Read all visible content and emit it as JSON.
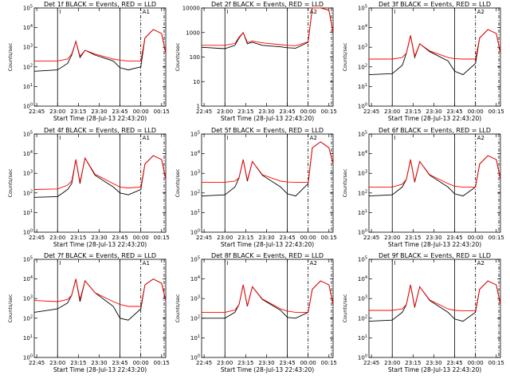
{
  "chart_data": {
    "type": "line",
    "x_tick_labels": [
      "22:45",
      "23:00",
      "23:15",
      "23:30",
      "23:45",
      "00:00",
      "00:15"
    ],
    "x_axis_label": "Start Time (28-Jul-13 22:43:20)",
    "y_axis_label": "Counts/sec",
    "y_scale": "log",
    "grid": false,
    "colors": {
      "events": "#000000",
      "lld": "#ff0000"
    },
    "panels": [
      {
        "title": "Det 1f BLACK = Events, RED = LLD",
        "ylim": [
          1,
          100000
        ],
        "y_ticks": [
          "10^0",
          "10^1",
          "10^2",
          "10^3",
          "10^4",
          "10^5"
        ],
        "marker_label": "A1",
        "series": [
          {
            "x": [
              22.72,
              23.0,
              23.12,
              23.17,
              23.22,
              23.27,
              23.33,
              23.45,
              23.67,
              23.75,
              23.85,
              24.0,
              24.05,
              24.15,
              24.25,
              24.3
            ],
            "y": [
              60,
              70,
              150,
              400,
              2000,
              300,
              700,
              400,
              200,
              90,
              70,
              100,
              3000,
              8000,
              5000,
              500
            ]
          },
          {
            "x": [
              22.72,
              23.0,
              23.12,
              23.17,
              23.22,
              23.27,
              23.33,
              23.45,
              23.67,
              23.75,
              23.85,
              24.0,
              24.05,
              24.15,
              24.25,
              24.3
            ],
            "y": [
              200,
              200,
              250,
              450,
              2000,
              350,
              700,
              450,
              250,
              220,
              200,
              200,
              3000,
              8000,
              5000,
              500
            ]
          }
        ]
      },
      {
        "title": "Det 2f BLACK = Events, RED = LLD",
        "ylim": [
          1,
          10000
        ],
        "y_ticks": [
          "1",
          "10",
          "100",
          "1000",
          "10000"
        ],
        "marker_label": "A2",
        "series": [
          {
            "x": [
              22.72,
              23.0,
              23.12,
              23.17,
              23.22,
              23.27,
              23.33,
              23.45,
              23.67,
              23.75,
              23.85,
              24.0,
              24.05,
              24.15,
              24.25,
              24.3
            ],
            "y": [
              250,
              220,
              300,
              600,
              1000,
              350,
              400,
              300,
              260,
              240,
              230,
              400,
              12000,
              14000,
              8000,
              1000
            ]
          },
          {
            "x": [
              22.72,
              23.0,
              23.12,
              23.17,
              23.22,
              23.27,
              23.33,
              23.45,
              23.67,
              23.75,
              23.85,
              24.0,
              24.05,
              24.15,
              24.25,
              24.3
            ],
            "y": [
              300,
              300,
              360,
              650,
              1000,
              400,
              450,
              380,
              320,
              300,
              290,
              420,
              12000,
              14000,
              8000,
              1000
            ]
          }
        ]
      },
      {
        "title": "Det 3f BLACK = Events, RED = LLD",
        "ylim": [
          1,
          100000
        ],
        "y_ticks": [
          "10^0",
          "10^1",
          "10^2",
          "10^3",
          "10^4",
          "10^5"
        ],
        "marker_label": "A2",
        "series": [
          {
            "x": [
              22.72,
              23.0,
              23.12,
              23.17,
              23.22,
              23.27,
              23.33,
              23.45,
              23.67,
              23.75,
              23.85,
              24.0,
              24.05,
              24.15,
              24.25,
              24.3
            ],
            "y": [
              40,
              45,
              120,
              500,
              4000,
              300,
              1500,
              600,
              200,
              60,
              40,
              150,
              3000,
              8000,
              5000,
              500
            ]
          },
          {
            "x": [
              22.72,
              23.0,
              23.12,
              23.17,
              23.22,
              23.27,
              23.33,
              23.45,
              23.67,
              23.75,
              23.85,
              24.0,
              24.05,
              24.15,
              24.25,
              24.3
            ],
            "y": [
              250,
              250,
              300,
              500,
              4000,
              350,
              1500,
              650,
              300,
              260,
              250,
              250,
              3000,
              8000,
              5000,
              500
            ]
          }
        ]
      },
      {
        "title": "Det 4f BLACK = Events, RED = LLD",
        "ylim": [
          1,
          100000
        ],
        "y_ticks": [
          "10^0",
          "10^1",
          "10^2",
          "10^3",
          "10^4",
          "10^5"
        ],
        "marker_label": "A1",
        "series": [
          {
            "x": [
              22.72,
              23.0,
              23.12,
              23.17,
              23.22,
              23.27,
              23.33,
              23.45,
              23.67,
              23.75,
              23.85,
              24.0,
              24.05,
              24.15,
              24.25,
              24.3
            ],
            "y": [
              60,
              65,
              150,
              300,
              5000,
              300,
              6000,
              800,
              200,
              100,
              80,
              150,
              3000,
              8000,
              5000,
              500
            ]
          },
          {
            "x": [
              22.72,
              23.0,
              23.12,
              23.17,
              23.22,
              23.27,
              23.33,
              23.45,
              23.67,
              23.75,
              23.85,
              24.0,
              24.05,
              24.15,
              24.25,
              24.3
            ],
            "y": [
              150,
              160,
              250,
              400,
              5000,
              350,
              6000,
              900,
              300,
              200,
              180,
              200,
              3000,
              8000,
              5000,
              500
            ]
          }
        ]
      },
      {
        "title": "Det 5f BLACK = Events, RED = LLD",
        "ylim": [
          1,
          100000
        ],
        "y_ticks": [
          "10^0",
          "10^1",
          "10^2",
          "10^3",
          "10^4",
          "10^5"
        ],
        "marker_label": "A2",
        "series": [
          {
            "x": [
              22.72,
              23.0,
              23.12,
              23.17,
              23.22,
              23.27,
              23.33,
              23.45,
              23.67,
              23.75,
              23.85,
              24.0,
              24.05,
              24.15,
              24.25,
              24.3
            ],
            "y": [
              70,
              80,
              200,
              600,
              5000,
              400,
              4000,
              800,
              200,
              90,
              70,
              300,
              20000,
              40000,
              20000,
              3000
            ]
          },
          {
            "x": [
              22.72,
              23.0,
              23.12,
              23.17,
              23.22,
              23.27,
              23.33,
              23.45,
              23.67,
              23.75,
              23.85,
              24.0,
              24.05,
              24.15,
              24.25,
              24.3
            ],
            "y": [
              350,
              350,
              400,
              600,
              5000,
              450,
              4000,
              850,
              400,
              360,
              350,
              350,
              20000,
              40000,
              20000,
              3000
            ]
          }
        ]
      },
      {
        "title": "Det 6f BLACK = Events, RED = LLD",
        "ylim": [
          1,
          100000
        ],
        "y_ticks": [
          "10^0",
          "10^1",
          "10^2",
          "10^3",
          "10^4",
          "10^5"
        ],
        "marker_label": "A2",
        "series": [
          {
            "x": [
              22.72,
              23.0,
              23.12,
              23.17,
              23.22,
              23.27,
              23.33,
              23.45,
              23.67,
              23.75,
              23.85,
              24.0,
              24.05,
              24.15,
              24.25,
              24.3
            ],
            "y": [
              70,
              80,
              200,
              500,
              5000,
              350,
              4000,
              800,
              200,
              90,
              70,
              200,
              3000,
              8000,
              5000,
              500
            ]
          },
          {
            "x": [
              22.72,
              23.0,
              23.12,
              23.17,
              23.22,
              23.27,
              23.33,
              23.45,
              23.67,
              23.75,
              23.85,
              24.0,
              24.05,
              24.15,
              24.25,
              24.3
            ],
            "y": [
              200,
              200,
              280,
              500,
              5000,
              380,
              4000,
              850,
              300,
              220,
              200,
              200,
              3000,
              8000,
              5000,
              500
            ]
          }
        ]
      },
      {
        "title": "Det 7f BLACK = Events, RED = LLD",
        "ylim": [
          1,
          100000
        ],
        "y_ticks": [
          "10^0",
          "10^1",
          "10^2",
          "10^3",
          "10^4",
          "10^5"
        ],
        "marker_label": "A1",
        "series": [
          {
            "x": [
              22.72,
              23.0,
              23.12,
              23.17,
              23.22,
              23.27,
              23.33,
              23.45,
              23.67,
              23.75,
              23.85,
              24.0,
              24.05,
              24.15,
              24.25,
              24.3
            ],
            "y": [
              200,
              300,
              600,
              1500,
              10000,
              700,
              8000,
              2000,
              400,
              100,
              80,
              300,
              5000,
              10000,
              6000,
              800
            ]
          },
          {
            "x": [
              22.72,
              23.0,
              23.12,
              23.17,
              23.22,
              23.27,
              23.33,
              23.45,
              23.67,
              23.75,
              23.85,
              24.0,
              24.05,
              24.15,
              24.25,
              24.3
            ],
            "y": [
              800,
              700,
              900,
              1500,
              10000,
              900,
              8000,
              2000,
              700,
              500,
              400,
              400,
              5000,
              10000,
              6000,
              800
            ]
          }
        ]
      },
      {
        "title": "Det 8f BLACK = Events, RED = LLD",
        "ylim": [
          1,
          100000
        ],
        "y_ticks": [
          "10^0",
          "10^1",
          "10^2",
          "10^3",
          "10^4",
          "10^5"
        ],
        "marker_label": "A2",
        "series": [
          {
            "x": [
              22.72,
              23.0,
              23.12,
              23.17,
              23.22,
              23.27,
              23.33,
              23.45,
              23.67,
              23.75,
              23.85,
              24.0,
              24.05,
              24.15,
              24.25,
              24.3
            ],
            "y": [
              100,
              100,
              200,
              500,
              5000,
              400,
              4000,
              900,
              250,
              110,
              100,
              200,
              3000,
              8000,
              5000,
              500
            ]
          },
          {
            "x": [
              22.72,
              23.0,
              23.12,
              23.17,
              23.22,
              23.27,
              23.33,
              23.45,
              23.67,
              23.75,
              23.85,
              24.0,
              24.05,
              24.15,
              24.25,
              24.3
            ],
            "y": [
              200,
              200,
              260,
              500,
              5000,
              420,
              4000,
              950,
              300,
              230,
              200,
              200,
              3000,
              8000,
              5000,
              500
            ]
          }
        ]
      },
      {
        "title": "Det 9f BLACK = Events, RED = LLD",
        "ylim": [
          1,
          100000
        ],
        "y_ticks": [
          "10^0",
          "10^1",
          "10^2",
          "10^3",
          "10^4",
          "10^5"
        ],
        "marker_label": "A2",
        "series": [
          {
            "x": [
              22.72,
              23.0,
              23.12,
              23.17,
              23.22,
              23.27,
              23.33,
              23.45,
              23.67,
              23.75,
              23.85,
              24.0,
              24.05,
              24.15,
              24.25,
              24.3
            ],
            "y": [
              70,
              80,
              200,
              500,
              5000,
              350,
              4000,
              800,
              200,
              90,
              70,
              200,
              3000,
              8000,
              5000,
              500
            ]
          },
          {
            "x": [
              22.72,
              23.0,
              23.12,
              23.17,
              23.22,
              23.27,
              23.33,
              23.45,
              23.67,
              23.75,
              23.85,
              24.0,
              24.05,
              24.15,
              24.25,
              24.3
            ],
            "y": [
              250,
              250,
              300,
              500,
              5000,
              380,
              4000,
              850,
              300,
              250,
              240,
              240,
              3000,
              8000,
              5000,
              500
            ]
          }
        ]
      }
    ]
  }
}
